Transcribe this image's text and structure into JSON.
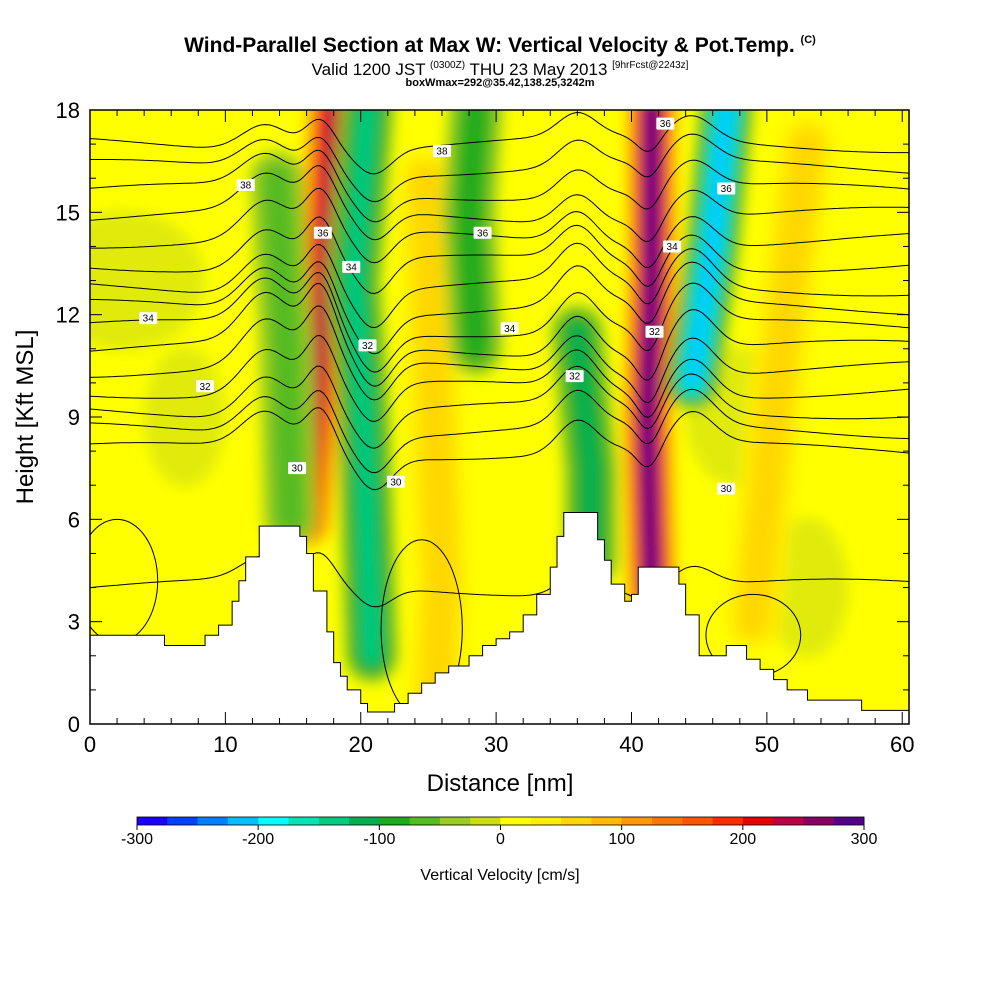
{
  "title": {
    "main": "Wind-Parallel Section at Max W: Vertical Velocity & Pot.Temp.",
    "main_mark": "(C)",
    "valid_a": "Valid 1200 JST",
    "valid_small": "(0300Z)",
    "valid_b": "THU 23 May 2013",
    "fcst": "[9hrFcst@2243z]",
    "box": "boxWmax=292@35.42,138.25,3242m"
  },
  "chart_data": {
    "type": "heatmap",
    "xlabel": "Distance [nm]",
    "ylabel": "Height [Kft MSL]",
    "xlim": [
      0,
      60.5
    ],
    "ylim": [
      0,
      18
    ],
    "x_ticks": [
      0,
      10,
      20,
      30,
      40,
      50,
      60
    ],
    "y_ticks": [
      0,
      3,
      6,
      9,
      12,
      15,
      18
    ],
    "grid": false,
    "colorbar": {
      "label": "Vertical Velocity [cm/s]",
      "min": -300,
      "max": 300,
      "ticks": [
        -300,
        -200,
        -100,
        0,
        100,
        200,
        300
      ],
      "colors": [
        "#1a00ff",
        "#0040ff",
        "#0080ff",
        "#00bfff",
        "#00ffff",
        "#00e5b5",
        "#00cc80",
        "#00b050",
        "#1eaa1e",
        "#55bb22",
        "#99cc22",
        "#ccdd11",
        "#ffff00",
        "#ffee00",
        "#ffd700",
        "#ffbb00",
        "#ff9900",
        "#ff7700",
        "#ff5500",
        "#ff2a00",
        "#e60000",
        "#bb0044",
        "#880066",
        "#550088"
      ]
    },
    "terrain_kft": [
      [
        0,
        2.6
      ],
      [
        2,
        2.6
      ],
      [
        4,
        2.6
      ],
      [
        5.5,
        2.3
      ],
      [
        8,
        2.3
      ],
      [
        8.5,
        2.6
      ],
      [
        9.5,
        2.9
      ],
      [
        10.5,
        3.6
      ],
      [
        11,
        4.2
      ],
      [
        11.5,
        4.9
      ],
      [
        12.5,
        5.8
      ],
      [
        13,
        5.8
      ],
      [
        14.5,
        5.8
      ],
      [
        15.5,
        5.5
      ],
      [
        16,
        5.0
      ],
      [
        16.5,
        3.9
      ],
      [
        17.5,
        2.7
      ],
      [
        18,
        1.8
      ],
      [
        18.5,
        1.4
      ],
      [
        19,
        1.0
      ],
      [
        20,
        0.6
      ],
      [
        20.5,
        0.35
      ],
      [
        22,
        0.35
      ],
      [
        22.5,
        0.6
      ],
      [
        23.5,
        0.9
      ],
      [
        24.5,
        1.2
      ],
      [
        25.5,
        1.5
      ],
      [
        26.5,
        1.7
      ],
      [
        28,
        2.0
      ],
      [
        29,
        2.3
      ],
      [
        30,
        2.5
      ],
      [
        31,
        2.7
      ],
      [
        32,
        3.2
      ],
      [
        33,
        3.8
      ],
      [
        34,
        4.6
      ],
      [
        34.5,
        5.5
      ],
      [
        35,
        6.2
      ],
      [
        37,
        6.2
      ],
      [
        37.5,
        5.4
      ],
      [
        38,
        4.8
      ],
      [
        38.5,
        4.1
      ],
      [
        39,
        4.1
      ],
      [
        39.5,
        3.6
      ],
      [
        40,
        3.8
      ],
      [
        40.5,
        4.6
      ],
      [
        43,
        4.6
      ],
      [
        43.5,
        4.1
      ],
      [
        44,
        3.2
      ],
      [
        45,
        2.0
      ],
      [
        46.5,
        2.0
      ],
      [
        47,
        2.3
      ],
      [
        48,
        2.3
      ],
      [
        48.5,
        1.9
      ],
      [
        49.5,
        1.6
      ],
      [
        50.5,
        1.3
      ],
      [
        51.5,
        1.0
      ],
      [
        53,
        0.7
      ],
      [
        56.5,
        0.7
      ],
      [
        57,
        0.4
      ],
      [
        60.5,
        0.4
      ]
    ],
    "w_features": [
      {
        "kind": "updraft",
        "peak_cms": 230,
        "path": [
          [
            16.0,
            5.9
          ],
          [
            17.0,
            11.0
          ],
          [
            17.5,
            15.0
          ],
          [
            17.8,
            18.0
          ]
        ]
      },
      {
        "kind": "downdraft",
        "peak_cms": -140,
        "path": [
          [
            20.8,
            2.0
          ],
          [
            20.2,
            9.0
          ],
          [
            19.5,
            13.0
          ],
          [
            20.5,
            18.0
          ]
        ]
      },
      {
        "kind": "downdraft",
        "peak_cms": -70,
        "path": [
          [
            14.8,
            6.0
          ],
          [
            14.5,
            11.0
          ],
          [
            13.8,
            16.0
          ]
        ]
      },
      {
        "kind": "updraft",
        "peak_cms": 60,
        "path": [
          [
            25.5,
            0.8
          ],
          [
            26.0,
            4.0
          ],
          [
            25.5,
            9.0
          ],
          [
            24.8,
            16.0
          ]
        ]
      },
      {
        "kind": "downdraft",
        "peak_cms": -90,
        "path": [
          [
            28.5,
            11.0
          ],
          [
            28.0,
            15.0
          ],
          [
            28.5,
            18.0
          ]
        ]
      },
      {
        "kind": "downdraft",
        "peak_cms": -110,
        "path": [
          [
            37.0,
            4.8
          ],
          [
            37.0,
            7.5
          ],
          [
            36.5,
            9.5
          ],
          [
            36.0,
            11.5
          ]
        ]
      },
      {
        "kind": "updraft",
        "peak_cms": 292,
        "path": [
          [
            41.5,
            3.9
          ],
          [
            41.2,
            9.0
          ],
          [
            41.5,
            13.0
          ],
          [
            41.5,
            18.0
          ]
        ]
      },
      {
        "kind": "downdraft",
        "peak_cms": -200,
        "path": [
          [
            44.5,
            10.0
          ],
          [
            46.0,
            14.0
          ],
          [
            47.0,
            18.0
          ]
        ]
      },
      {
        "kind": "updraft",
        "peak_cms": 70,
        "path": [
          [
            49.0,
            3.0
          ],
          [
            50.5,
            9.0
          ],
          [
            52.0,
            14.0
          ],
          [
            53.0,
            17.0
          ]
        ]
      }
    ],
    "theta_contours": {
      "interval_K": 1,
      "labeled_values": [
        "30",
        "32",
        "34",
        "36",
        "38"
      ],
      "levels_kft_far_field": [
        4.0,
        8.0,
        8.6,
        9.2,
        9.8,
        10.4,
        11.0,
        11.6,
        12.2,
        12.8,
        13.5,
        14.2,
        14.9,
        15.6,
        16.3,
        17.0
      ]
    },
    "contour_labels": [
      {
        "text": "38",
        "x": 11.5,
        "y": 15.8
      },
      {
        "text": "38",
        "x": 26.0,
        "y": 16.8
      },
      {
        "text": "36",
        "x": 17.2,
        "y": 14.4
      },
      {
        "text": "36",
        "x": 29.0,
        "y": 14.4
      },
      {
        "text": "36",
        "x": 42.5,
        "y": 17.6
      },
      {
        "text": "36",
        "x": 47.0,
        "y": 15.7
      },
      {
        "text": "34",
        "x": 4.3,
        "y": 11.9
      },
      {
        "text": "34",
        "x": 19.3,
        "y": 13.4
      },
      {
        "text": "34",
        "x": 31.0,
        "y": 11.6
      },
      {
        "text": "34",
        "x": 43.0,
        "y": 14.0
      },
      {
        "text": "32",
        "x": 8.5,
        "y": 9.9
      },
      {
        "text": "32",
        "x": 20.5,
        "y": 11.1
      },
      {
        "text": "32",
        "x": 35.8,
        "y": 10.2
      },
      {
        "text": "32",
        "x": 41.7,
        "y": 11.5
      },
      {
        "text": "30",
        "x": 15.3,
        "y": 7.5
      },
      {
        "text": "30",
        "x": 22.6,
        "y": 7.1
      },
      {
        "text": "30",
        "x": 47.0,
        "y": 6.9
      }
    ]
  }
}
